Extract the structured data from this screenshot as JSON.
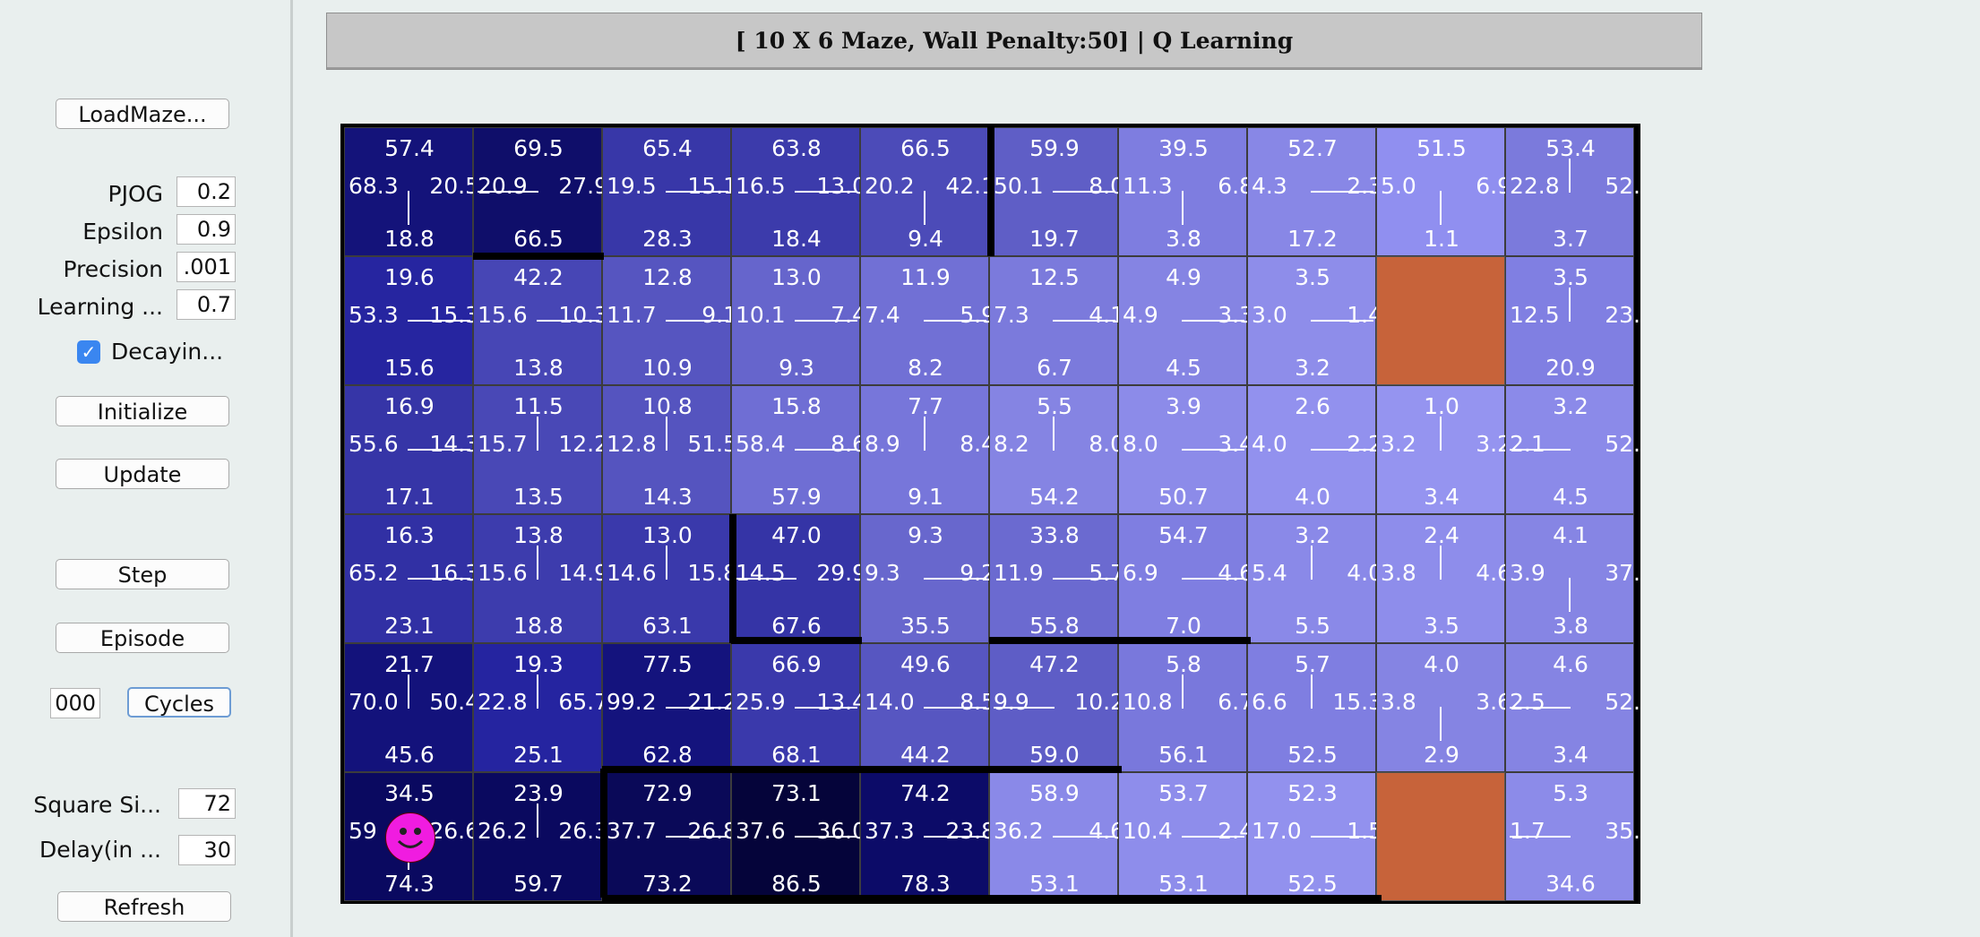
{
  "controls": {
    "load_maze": "LoadMaze...",
    "pjog_label": "PJOG",
    "pjog_value": "0.2",
    "epsilon_label": "Epsilon",
    "epsilon_value": "0.9",
    "precision_label": "Precision",
    "precision_value": ".001",
    "learning_label": "Learning ...",
    "learning_value": "0.7",
    "decaying_label": "Decayin...",
    "decaying_checked": true,
    "initialize": "Initialize",
    "update": "Update",
    "step": "Step",
    "episode": "Episode",
    "cycles_value": "000",
    "cycles": "Cycles",
    "square_size_label": "Square Si...",
    "square_size_value": "72",
    "delay_label": "Delay(in ...",
    "delay_value": "30",
    "refresh": "Refresh"
  },
  "title": "[ 10 X 6 Maze, Wall Penalty:50] |  Q Learning",
  "maze": {
    "cols": 10,
    "rows": 6,
    "cells": [
      [
        {
          "n": "57.4",
          "w": "68.3",
          "e": "20.5",
          "s": "18.8",
          "arrow": "s",
          "color": "#14137a"
        },
        {
          "n": "69.5",
          "w": "20.9",
          "e": "27.9",
          "s": "66.5",
          "arrow": "w",
          "color": "#0f0e6a"
        },
        {
          "n": "65.4",
          "w": "19.5",
          "e": "15.1",
          "s": "28.3",
          "arrow": "e",
          "color": "#3837a8"
        },
        {
          "n": "63.8",
          "w": "16.5",
          "e": "13.0",
          "s": "18.4",
          "arrow": "e",
          "color": "#3c3bab"
        },
        {
          "n": "66.5",
          "w": "20.2",
          "e": "42.1",
          "s": "9.4",
          "arrow": "s",
          "color": "#4c4bb8"
        },
        {
          "n": "59.9",
          "w": "50.1",
          "e": "8.0",
          "s": "19.7",
          "arrow": "e",
          "color": "#5f5ec6"
        },
        {
          "n": "39.5",
          "w": "11.3",
          "e": "6.8",
          "s": "3.8",
          "arrow": "s",
          "color": "#7e7de0"
        },
        {
          "n": "52.7",
          "w": "4.3",
          "e": "2.3",
          "s": "17.2",
          "arrow": "e",
          "color": "#8887e6"
        },
        {
          "n": "51.5",
          "w": "5.0",
          "e": "6.9",
          "s": "1.1",
          "arrow": "s",
          "color": "#908ff0"
        },
        {
          "n": "53.4",
          "w": "22.8",
          "e": "52.",
          "s": "3.7",
          "arrow": "n",
          "color": "#7b7adc"
        }
      ],
      [
        {
          "n": "19.6",
          "w": "53.3",
          "e": "15.3",
          "s": "15.6",
          "arrow": "e",
          "color": "#2625a0"
        },
        {
          "n": "42.2",
          "w": "15.6",
          "e": "10.3",
          "s": "13.8",
          "arrow": "e",
          "color": "#4746b5"
        },
        {
          "n": "12.8",
          "w": "11.7",
          "e": "9.1",
          "s": "10.9",
          "arrow": "e",
          "color": "#5655c0"
        },
        {
          "n": "13.0",
          "w": "10.1",
          "e": "7.4",
          "s": "9.3",
          "arrow": "e",
          "color": "#6665cc"
        },
        {
          "n": "11.9",
          "w": "7.4",
          "e": "5.9",
          "s": "8.2",
          "arrow": "e",
          "color": "#7170d5"
        },
        {
          "n": "12.5",
          "w": "7.3",
          "e": "4.1",
          "s": "6.7",
          "arrow": "e",
          "color": "#7b7adc"
        },
        {
          "n": "4.9",
          "w": "4.9",
          "e": "3.3",
          "s": "4.5",
          "arrow": "e",
          "color": "#8584e3"
        },
        {
          "n": "3.5",
          "w": "3.0",
          "e": "1.4",
          "s": "3.2",
          "arrow": "e",
          "color": "#8e8dea"
        },
        {
          "blocked": true
        },
        {
          "n": "3.5",
          "w": "12.5",
          "e": "23.",
          "s": "20.9",
          "arrow": "n",
          "color": "#807fe2"
        }
      ],
      [
        {
          "n": "16.9",
          "w": "55.6",
          "e": "14.3",
          "s": "17.1",
          "arrow": "e",
          "color": "#3635a7"
        },
        {
          "n": "11.5",
          "w": "15.7",
          "e": "12.2",
          "s": "13.5",
          "arrow": "n",
          "color": "#4948b6"
        },
        {
          "n": "10.8",
          "w": "12.8",
          "e": "51.5",
          "s": "14.3",
          "arrow": "n",
          "color": "#5554bf"
        },
        {
          "n": "15.8",
          "w": "58.4",
          "e": "8.6",
          "s": "57.9",
          "arrow": "e",
          "color": "#6f6ed4"
        },
        {
          "n": "7.7",
          "w": "8.9",
          "e": "8.4",
          "s": "9.1",
          "arrow": "n",
          "color": "#7776da"
        },
        {
          "n": "5.5",
          "w": "8.2",
          "e": "8.0",
          "s": "54.2",
          "arrow": "n",
          "color": "#8584e3"
        },
        {
          "n": "3.9",
          "w": "8.0",
          "e": "3.4",
          "s": "50.7",
          "arrow": "e",
          "color": "#8c8be9"
        },
        {
          "n": "2.6",
          "w": "4.0",
          "e": "2.2",
          "s": "4.0",
          "arrow": "e",
          "color": "#9291ee"
        },
        {
          "n": "1.0",
          "w": "3.2",
          "e": "3.2",
          "s": "3.4",
          "arrow": "n",
          "color": "#9594f0"
        },
        {
          "n": "3.2",
          "w": "2.1",
          "e": "52.",
          "s": "4.5",
          "arrow": "w",
          "color": "#8b8ae9"
        }
      ],
      [
        {
          "n": "16.3",
          "w": "65.2",
          "e": "16.3",
          "s": "23.1",
          "arrow": "e",
          "color": "#3130a4"
        },
        {
          "n": "13.8",
          "w": "15.6",
          "e": "14.9",
          "s": "18.8",
          "arrow": "n",
          "color": "#3d3cad"
        },
        {
          "n": "13.0",
          "w": "14.6",
          "e": "15.8",
          "s": "63.1",
          "arrow": "n",
          "color": "#3a39ab"
        },
        {
          "n": "47.0",
          "w": "14.5",
          "e": "29.9",
          "s": "67.6",
          "arrow": "w",
          "color": "#3534a6"
        },
        {
          "n": "9.3",
          "w": "9.3",
          "e": "9.2",
          "s": "35.5",
          "arrow": "e",
          "color": "#6867cd"
        },
        {
          "n": "33.8",
          "w": "11.9",
          "e": "5.7",
          "s": "55.8",
          "arrow": "e",
          "color": "#6b6ad0"
        },
        {
          "n": "54.7",
          "w": "6.9",
          "e": "4.6",
          "s": "7.0",
          "arrow": "e",
          "color": "#7f7ee1"
        },
        {
          "n": "3.2",
          "w": "5.4",
          "e": "4.0",
          "s": "5.5",
          "arrow": "n",
          "color": "#8a89e8"
        },
        {
          "n": "2.4",
          "w": "3.8",
          "e": "4.6",
          "s": "3.5",
          "arrow": "n",
          "color": "#8e8deb"
        },
        {
          "n": "4.1",
          "w": "3.9",
          "e": "37.",
          "s": "3.8",
          "arrow": "s",
          "color": "#8685e4"
        }
      ],
      [
        {
          "n": "21.7",
          "w": "70.0",
          "e": "50.4",
          "s": "45.6",
          "arrow": "n",
          "color": "#13127b"
        },
        {
          "n": "19.3",
          "w": "22.8",
          "e": "65.7",
          "s": "25.1",
          "arrow": "n",
          "color": "#2524a0"
        },
        {
          "n": "77.5",
          "w": "99.2",
          "e": "21.2",
          "s": "62.8",
          "arrow": "e",
          "color": "#14137d"
        },
        {
          "n": "66.9",
          "w": "25.9",
          "e": "13.4",
          "s": "68.1",
          "arrow": "e",
          "color": "#3a39ab"
        },
        {
          "n": "49.6",
          "w": "14.0",
          "e": "8.5",
          "s": "44.2",
          "arrow": "e",
          "color": "#5756c1"
        },
        {
          "n": "47.2",
          "w": "9.9",
          "e": "10.2",
          "s": "59.0",
          "arrow": "w",
          "color": "#5e5dc6"
        },
        {
          "n": "5.8",
          "w": "10.8",
          "e": "6.7",
          "s": "56.1",
          "arrow": "n",
          "color": "#7978dc"
        },
        {
          "n": "5.7",
          "w": "6.6",
          "e": "15.3",
          "s": "52.5",
          "arrow": "n",
          "color": "#7f7ee1"
        },
        {
          "n": "4.0",
          "w": "3.8",
          "e": "3.6",
          "s": "2.9",
          "arrow": "s",
          "color": "#8584e3"
        },
        {
          "n": "4.6",
          "w": "2.5",
          "e": "52.",
          "s": "3.4",
          "arrow": "w",
          "color": "#8584e3"
        }
      ],
      [
        {
          "n": "34.5",
          "w": "59",
          "e": "26.6",
          "s": "74.3",
          "arrow": "s",
          "color": "#0a0960"
        },
        {
          "n": "23.9",
          "w": "26.2",
          "e": "26.3",
          "s": "59.7",
          "arrow": "n",
          "color": "#0a095f"
        },
        {
          "n": "72.9",
          "w": "37.7",
          "e": "26.8",
          "s": "73.2",
          "arrow": "e",
          "color": "#0a0958"
        },
        {
          "n": "73.1",
          "w": "37.6",
          "e": "36.0",
          "s": "86.5",
          "arrow": "e",
          "color": "#05043a"
        },
        {
          "n": "74.2",
          "w": "37.3",
          "e": "23.8",
          "s": "78.3",
          "arrow": "e",
          "color": "#0c0b68"
        },
        {
          "n": "58.9",
          "w": "36.2",
          "e": "4.6",
          "s": "53.1",
          "arrow": "e",
          "color": "#8a89e8"
        },
        {
          "n": "53.7",
          "w": "10.4",
          "e": "2.4",
          "s": "53.1",
          "arrow": "e",
          "color": "#8e8deb"
        },
        {
          "n": "52.3",
          "w": "17.0",
          "e": "1.5",
          "s": "52.5",
          "arrow": "e",
          "color": "#9291ee"
        },
        {
          "blocked": true
        },
        {
          "n": "5.3",
          "w": "1.7",
          "e": "35.",
          "s": "34.6",
          "arrow": "w",
          "color": "#8c8be9"
        }
      ]
    ],
    "agent": {
      "row": 6,
      "col": 1
    },
    "blocked_color": "#c7633a",
    "agent_color": "#f01ce0"
  }
}
